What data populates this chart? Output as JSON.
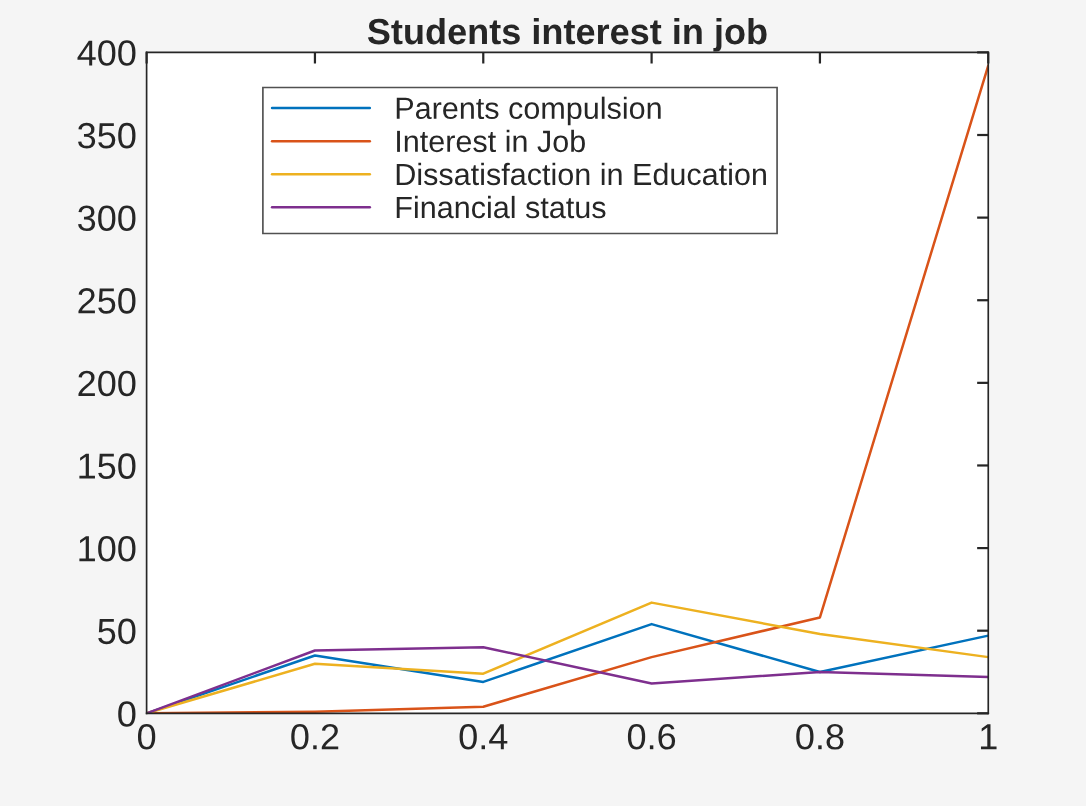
{
  "chart_data": {
    "type": "line",
    "title": "Students interest in job",
    "x": [
      0,
      0.2,
      0.4,
      0.6,
      0.8,
      1
    ],
    "series": [
      {
        "name": "Parents compulsion",
        "color": "#0072bd",
        "values": [
          0,
          35,
          19,
          54,
          25,
          47
        ]
      },
      {
        "name": "Interest in Job",
        "color": "#d95319",
        "values": [
          0,
          1,
          4,
          34,
          58,
          392
        ]
      },
      {
        "name": "Dissatisfaction in Education",
        "color": "#edb120",
        "values": [
          0,
          30,
          24,
          67,
          48,
          34
        ]
      },
      {
        "name": "Financial status",
        "color": "#7e2f8e",
        "values": [
          0,
          38,
          40,
          18,
          25,
          22
        ]
      }
    ],
    "xlim": [
      0,
      1
    ],
    "xticks": [
      0,
      0.2,
      0.4,
      0.6,
      0.8,
      1
    ],
    "ylim": [
      0,
      400
    ],
    "yticks": [
      0,
      50,
      100,
      150,
      200,
      250,
      300,
      350,
      400
    ],
    "grid": false,
    "legend": "top left",
    "marker": "none",
    "line_style": "solid"
  }
}
